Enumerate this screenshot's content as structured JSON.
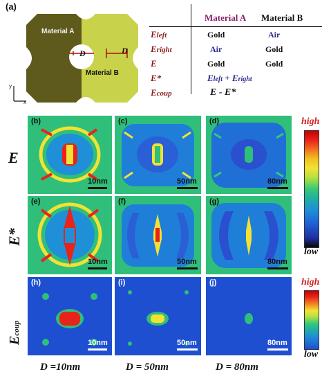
{
  "panel_a": {
    "label": "(a)",
    "material_a_label": "Material A",
    "material_b_label": "Material B",
    "d_label": "D",
    "axis_y": "y",
    "axis_x": "x"
  },
  "table": {
    "col_headers": [
      "Material A",
      "Material B"
    ],
    "rows": [
      {
        "label": "E_left",
        "a": "Gold",
        "b": "Air"
      },
      {
        "label": "E_right",
        "a": "Air",
        "b": "Gold"
      },
      {
        "label": "E",
        "a": "Gold",
        "b": "Gold"
      },
      {
        "label": "E*",
        "formula": "E_left + E_right"
      },
      {
        "label": "E_coup",
        "formula": "E - E*"
      }
    ]
  },
  "rows": [
    {
      "label": "E",
      "panels": [
        {
          "tag": "(b)",
          "scale": "10nm"
        },
        {
          "tag": "(c)",
          "scale": "50nm"
        },
        {
          "tag": "(d)",
          "scale": "80nm"
        }
      ]
    },
    {
      "label": "E*",
      "panels": [
        {
          "tag": "(e)",
          "scale": "10nm"
        },
        {
          "tag": "(f)",
          "scale": "50nm"
        },
        {
          "tag": "(g)",
          "scale": "80nm"
        }
      ]
    },
    {
      "label": "E_coup",
      "panels": [
        {
          "tag": "(h)",
          "scale": "10nm"
        },
        {
          "tag": "(i)",
          "scale": "50nm"
        },
        {
          "tag": "(j)",
          "scale": "80nm"
        }
      ]
    }
  ],
  "colorbar": {
    "high": "high",
    "low": "low"
  },
  "captions": [
    "D =10nm",
    "D = 50nm",
    "D = 80nm"
  ],
  "colors": {
    "material_a": "#5e5a1c",
    "material_b": "#c8d24a",
    "field_bg_green": "#2fbf7a",
    "field_bg_blue": "#1f4fd1",
    "hot_red": "#e8231a",
    "hot_yellow": "#f2e234"
  }
}
